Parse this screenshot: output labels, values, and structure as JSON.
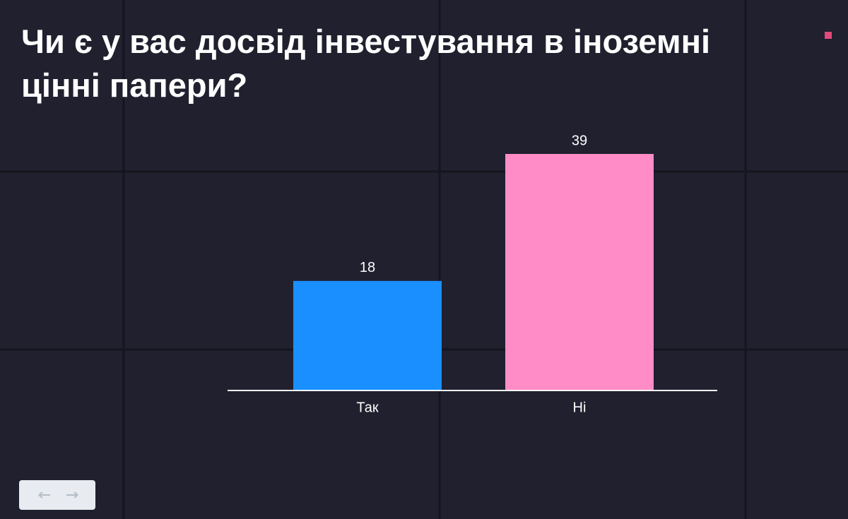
{
  "chart_data": {
    "type": "bar",
    "title": "Чи є у вас досвід інвестування в іноземні цінні папери?",
    "categories": [
      "Так",
      "Ні"
    ],
    "values": [
      18,
      39
    ],
    "colors": [
      "#1a8fff",
      "#ff8cc6"
    ]
  }
}
